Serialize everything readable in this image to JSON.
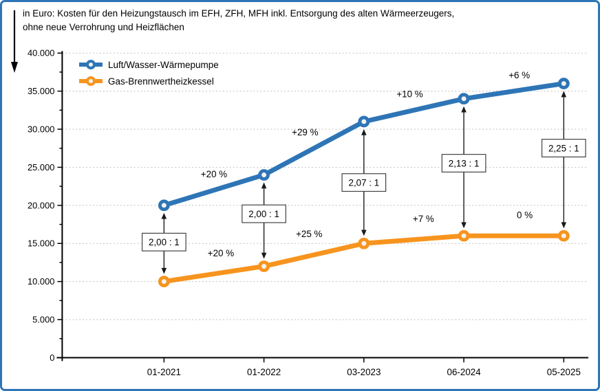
{
  "frame": {
    "border_color": "#2E75B6",
    "background": "#FFFFFF"
  },
  "title": {
    "line1": "in Euro: Kosten für den Heizungstausch im EFH, ZFH, MFH inkl. Entsorgung des alten Wärmeerzeugers,",
    "line2": "ohne neue Verrohrung und Heizflächen"
  },
  "legend": {
    "items": [
      {
        "label": "Luft/Wasser-Wärmepumpe",
        "color": "#2E75B6"
      },
      {
        "label": "Gas-Brennwertheizkessel",
        "color": "#F7941E"
      }
    ]
  },
  "chart_data": {
    "type": "line",
    "title": "in Euro: Kosten für den Heizungstausch im EFH, ZFH, MFH inkl. Entsorgung des alten Wärmeerzeugers, ohne neue Verrohrung und Heizflächen",
    "categories": [
      "01-2021",
      "01-2022",
      "03-2023",
      "06-2024",
      "05-2025"
    ],
    "series": [
      {
        "name": "Luft/Wasser-Wärmepumpe",
        "color": "#2E75B6",
        "values": [
          20000,
          24000,
          31000,
          34000,
          36000
        ],
        "pct_change_labels": [
          "+20 %",
          "+29 %",
          "+10 %",
          "+6 %"
        ]
      },
      {
        "name": "Gas-Brennwertheizkessel",
        "color": "#F7941E",
        "values": [
          10000,
          12000,
          15000,
          16000,
          16000
        ],
        "pct_change_labels": [
          "+20 %",
          "+25 %",
          "+7 %",
          "0 %"
        ]
      }
    ],
    "ratio_labels": [
      "2,00 : 1",
      "2,00 : 1",
      "2,07 : 1",
      "2,13 : 1",
      "2,25 : 1"
    ],
    "y_axis": {
      "min": 0,
      "max": 40000,
      "major_step": 5000,
      "minor_step": 2500,
      "tick_labels": [
        "40.000",
        "35.000",
        "30.000",
        "25.000",
        "20.000",
        "15.000",
        "10.000",
        "5.000",
        "0"
      ]
    },
    "grid": "horizontal-dotted",
    "legend_position": "top-left-inside",
    "colors": {
      "gridline": "#BFBFBF",
      "axis": "#000000",
      "annotation_box_border": "#404040",
      "marker_fill": "#F2F2F2"
    }
  }
}
